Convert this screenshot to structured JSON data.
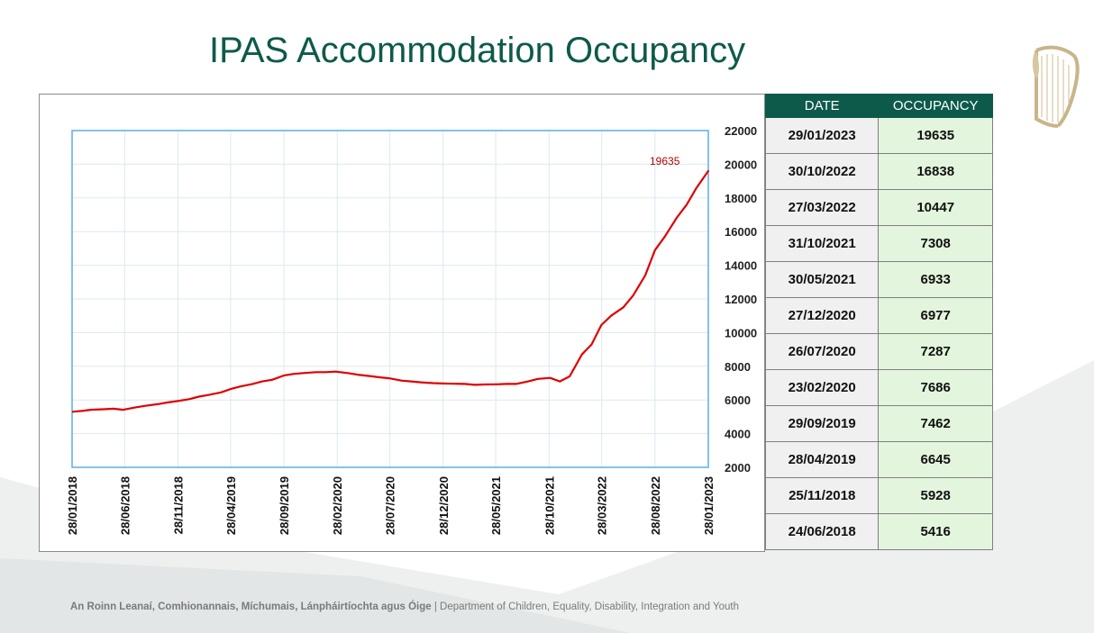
{
  "title": "IPAS Accommodation Occupancy",
  "colors": {
    "brand_green": "#0d5a4a",
    "line_red": "#e00000",
    "plot_border": "#5aaee8",
    "occupancy_cell": "#e3f5dc",
    "date_cell": "#f0f0f0"
  },
  "chart_data": {
    "type": "line",
    "x": [
      "2018-01-28",
      "2018-02-25",
      "2018-03-25",
      "2018-04-29",
      "2018-05-27",
      "2018-06-24",
      "2018-07-29",
      "2018-08-26",
      "2018-09-30",
      "2018-10-28",
      "2018-11-25",
      "2018-12-30",
      "2019-01-27",
      "2019-02-24",
      "2019-03-31",
      "2019-04-28",
      "2019-05-26",
      "2019-06-30",
      "2019-07-28",
      "2019-08-25",
      "2019-09-29",
      "2019-10-27",
      "2019-11-24",
      "2019-12-29",
      "2020-01-26",
      "2020-02-23",
      "2020-03-29",
      "2020-04-26",
      "2020-05-31",
      "2020-06-28",
      "2020-07-26",
      "2020-08-30",
      "2020-09-27",
      "2020-10-25",
      "2020-11-29",
      "2020-12-27",
      "2021-01-31",
      "2021-02-28",
      "2021-03-28",
      "2021-04-25",
      "2021-05-30",
      "2021-06-27",
      "2021-07-25",
      "2021-08-29",
      "2021-09-26",
      "2021-10-31",
      "2021-11-28",
      "2021-12-26",
      "2022-01-30",
      "2022-02-27",
      "2022-03-27",
      "2022-04-24",
      "2022-05-29",
      "2022-06-26",
      "2022-07-31",
      "2022-08-28",
      "2022-09-25",
      "2022-10-30",
      "2022-11-27",
      "2022-12-25",
      "2023-01-29"
    ],
    "y": [
      5300,
      5350,
      5420,
      5450,
      5480,
      5416,
      5560,
      5650,
      5750,
      5850,
      5928,
      6050,
      6200,
      6300,
      6450,
      6645,
      6800,
      6950,
      7100,
      7200,
      7462,
      7550,
      7600,
      7650,
      7650,
      7686,
      7600,
      7500,
      7420,
      7350,
      7287,
      7150,
      7100,
      7050,
      7000,
      6977,
      6960,
      6950,
      6900,
      6920,
      6933,
      6950,
      6950,
      7100,
      7250,
      7308,
      7100,
      7400,
      8700,
      9300,
      10447,
      11000,
      11500,
      12200,
      13400,
      14900,
      15700,
      16838,
      17600,
      18600,
      19635
    ],
    "x_tick_labels": [
      "28/01/2018",
      "28/06/2018",
      "28/11/2018",
      "28/04/2019",
      "28/09/2019",
      "28/02/2020",
      "28/07/2020",
      "28/12/2020",
      "28/05/2021",
      "28/10/2021",
      "28/03/2022",
      "28/08/2022",
      "28/01/2023"
    ],
    "x_range": [
      "2018-01-28",
      "2023-01-28"
    ],
    "y_ticks": [
      2000,
      4000,
      6000,
      8000,
      10000,
      12000,
      14000,
      16000,
      18000,
      20000,
      22000
    ],
    "ylim": [
      2000,
      22000
    ],
    "y_axis_side": "right",
    "grid": true,
    "annotations": [
      {
        "label": "19635",
        "x": "2023-01-29",
        "y": 19635
      }
    ],
    "title": "",
    "xlabel": "",
    "ylabel": ""
  },
  "table": {
    "headers": [
      "DATE",
      "OCCUPANCY"
    ],
    "rows": [
      [
        "29/01/2023",
        "19635"
      ],
      [
        "30/10/2022",
        "16838"
      ],
      [
        "27/03/2022",
        "10447"
      ],
      [
        "31/10/2021",
        "7308"
      ],
      [
        "30/05/2021",
        "6933"
      ],
      [
        "27/12/2020",
        "6977"
      ],
      [
        "26/07/2020",
        "7287"
      ],
      [
        "23/02/2020",
        "7686"
      ],
      [
        "29/09/2019",
        "7462"
      ],
      [
        "28/04/2019",
        "6645"
      ],
      [
        "25/11/2018",
        "5928"
      ],
      [
        "24/06/2018",
        "5416"
      ]
    ]
  },
  "footer": {
    "irish": "An Roinn Leanaí, Comhionannais, Míchumais, Lánpháirtíochta agus Óige",
    "separator": " | ",
    "english": "Department of Children, Equality, Disability, Integration and Youth"
  }
}
